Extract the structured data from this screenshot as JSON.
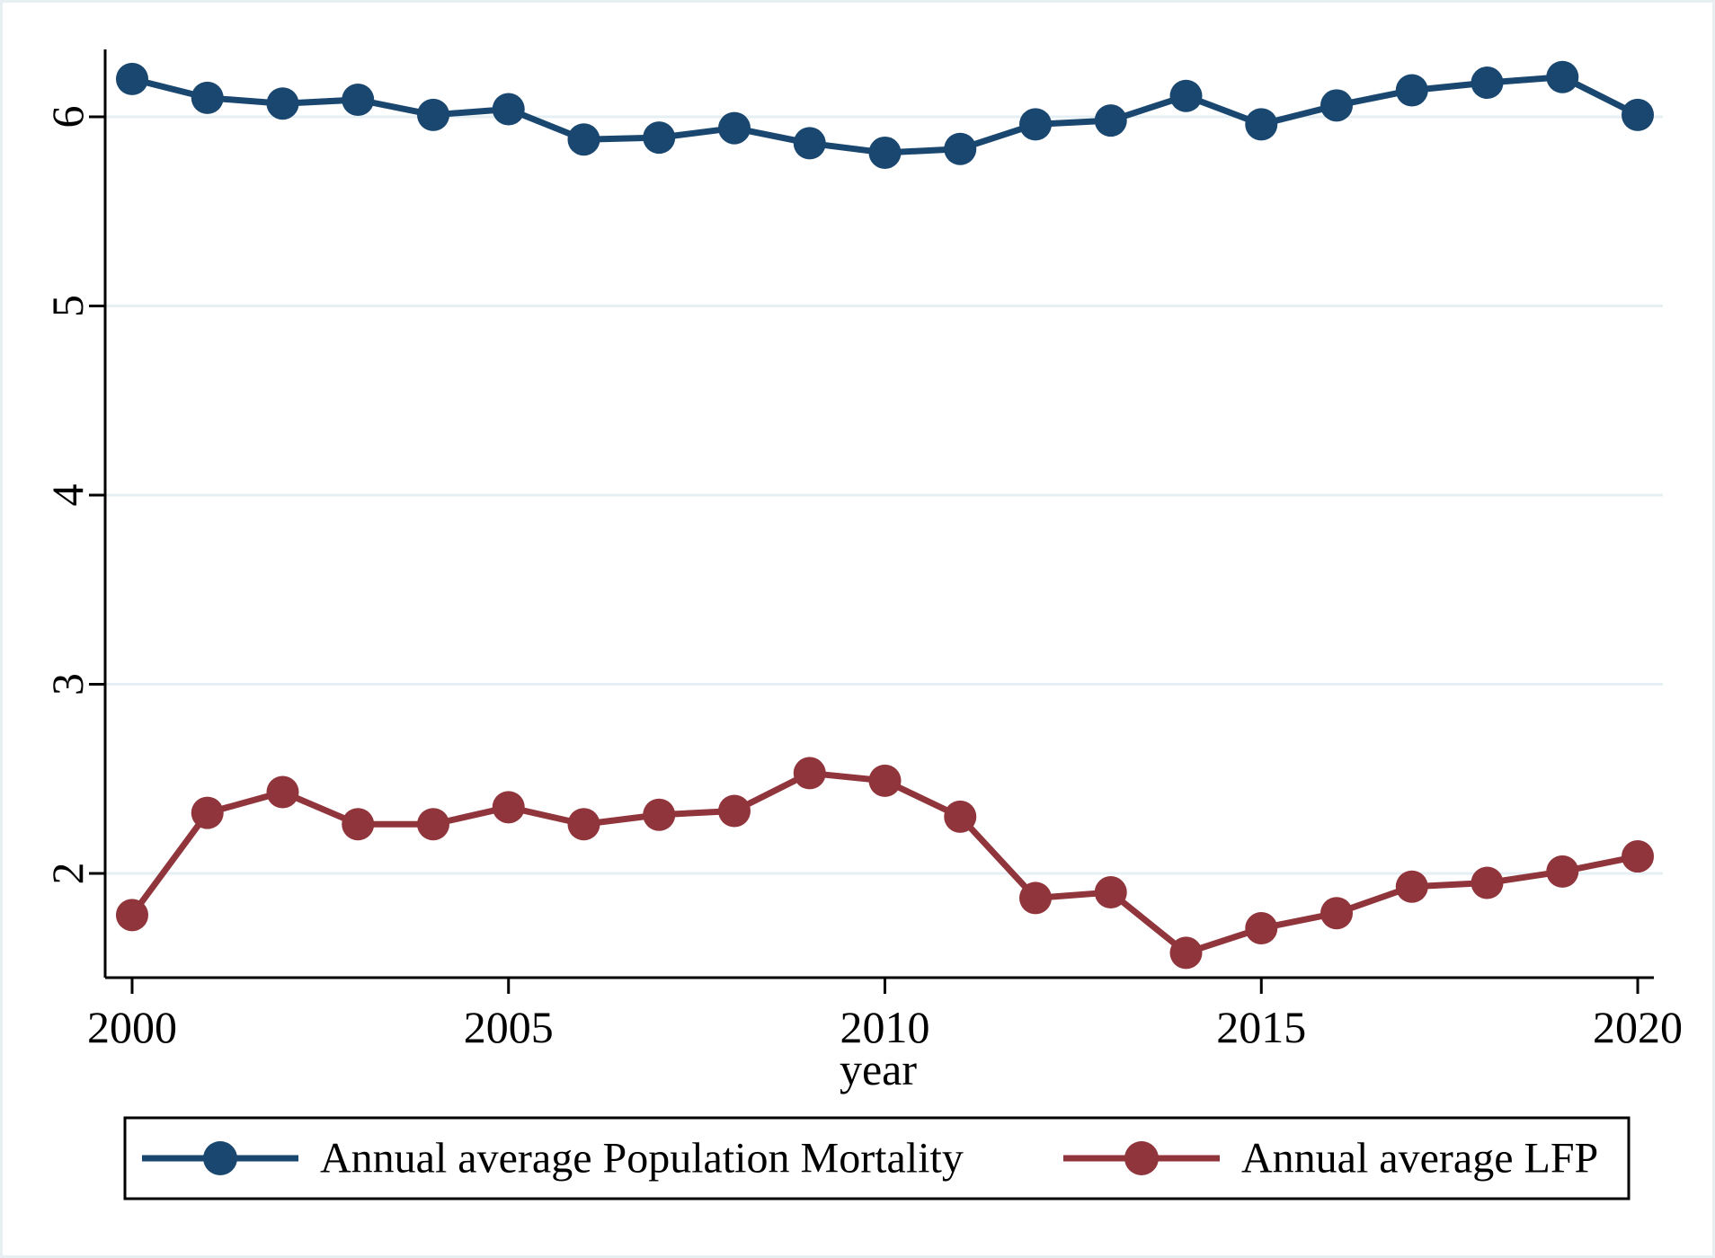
{
  "figure": {
    "xlabel": "year",
    "background_color": "#ffffff",
    "frame_color": "#e7eff3",
    "axis_color": "#000000",
    "grid_color": "#e6eff3",
    "legend": {
      "border_color": "#000000",
      "fill_color": "#ffffff",
      "entries": [
        "Annual average Population Mortality",
        "Annual average LFP"
      ]
    }
  },
  "chart_data": {
    "type": "line",
    "title": "",
    "xlabel": "year",
    "ylabel": "",
    "x": [
      2000,
      2001,
      2002,
      2003,
      2004,
      2005,
      2006,
      2007,
      2008,
      2009,
      2010,
      2011,
      2012,
      2013,
      2014,
      2015,
      2016,
      2017,
      2018,
      2019,
      2020
    ],
    "series": [
      {
        "name": "Annual average Population Mortality",
        "color": "#1a476f",
        "marker": "circle",
        "values": [
          6.2,
          6.1,
          6.07,
          6.09,
          6.01,
          6.04,
          5.88,
          5.89,
          5.94,
          5.86,
          5.81,
          5.83,
          5.96,
          5.98,
          6.11,
          5.96,
          6.06,
          6.14,
          6.18,
          6.21,
          6.01
        ]
      },
      {
        "name": "Annual average LFP",
        "color": "#90353b",
        "marker": "circle",
        "values": [
          1.78,
          2.32,
          2.43,
          2.26,
          2.26,
          2.35,
          2.26,
          2.31,
          2.33,
          2.53,
          2.49,
          2.3,
          1.87,
          1.9,
          1.58,
          1.71,
          1.79,
          1.93,
          1.95,
          2.01,
          2.09
        ]
      }
    ],
    "x_ticks": [
      2000,
      2005,
      2010,
      2015,
      2020
    ],
    "y_ticks": [
      2,
      3,
      4,
      5,
      6
    ],
    "xlim": [
      1999.642,
      2020.334
    ],
    "ylim": [
      1.449,
      6.356
    ],
    "grid": "horizontal",
    "legend_position": "bottom"
  }
}
